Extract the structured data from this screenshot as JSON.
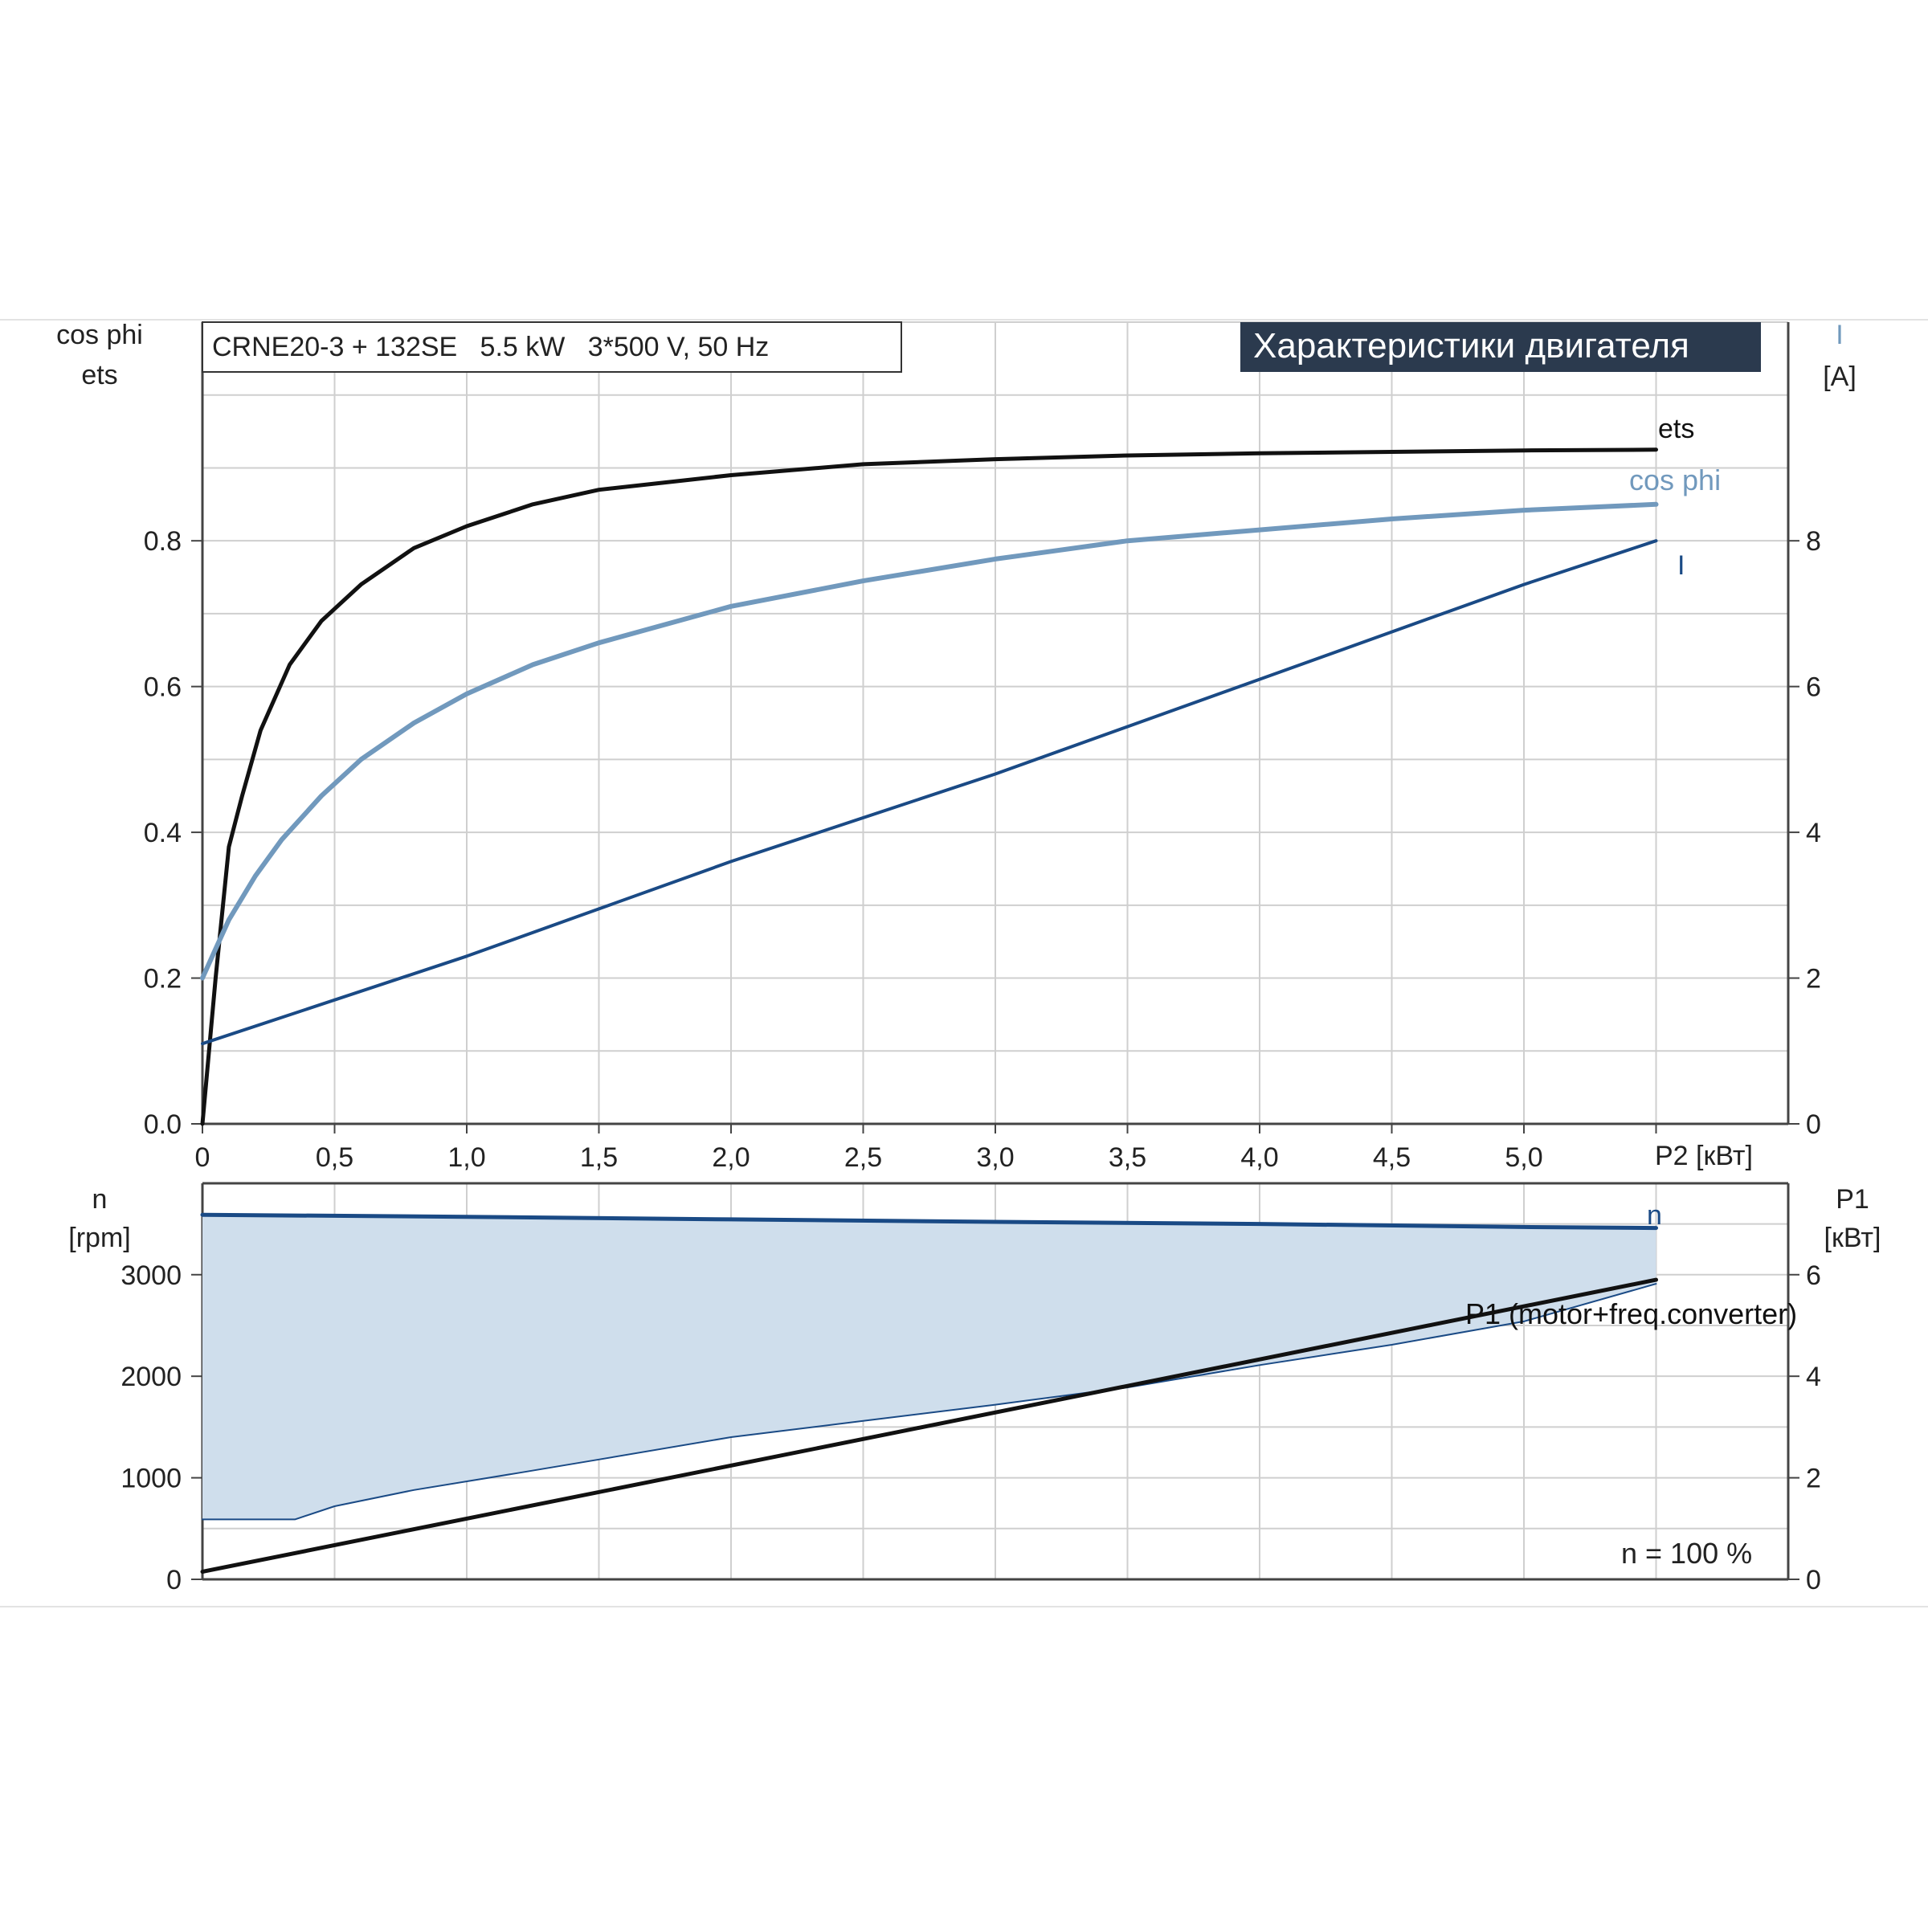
{
  "header": {
    "model": "CRNE20-3 + 132SE   5.5 kW   3*500 V, 50 Hz",
    "title": "Характеристики двигателя"
  },
  "colors": {
    "ets": "#111111",
    "cos_phi": "#7199bd",
    "current": "#1a4a85",
    "speed": "#1a4a85",
    "p1": "#111111",
    "band_fill": "#cfdeec",
    "grid": "#cfcfcf",
    "title_bg": "#2b3a4e"
  },
  "chart_data": [
    {
      "type": "line",
      "xlabel": "P2 [кВт]",
      "xlim": [
        0,
        6.0
      ],
      "xticks": [
        "0",
        "0,5",
        "1,0",
        "1,5",
        "2,0",
        "2,5",
        "3,0",
        "3,5",
        "4,0",
        "4,5",
        "5,0"
      ],
      "ylabel_left": [
        "cos phi",
        "ets"
      ],
      "ylim_left": [
        0,
        1.1
      ],
      "yticks_left": [
        "0.0",
        "0.2",
        "0.4",
        "0.6",
        "0.8"
      ],
      "ylabel_right": [
        "I",
        "[A]"
      ],
      "ylim_right": [
        0,
        11
      ],
      "yticks_right": [
        "0",
        "2",
        "4",
        "6",
        "8"
      ],
      "grid": true,
      "series": [
        {
          "name": "ets",
          "axis": "left",
          "x": [
            0,
            0.05,
            0.1,
            0.15,
            0.22,
            0.33,
            0.45,
            0.6,
            0.8,
            1.0,
            1.25,
            1.5,
            1.75,
            2.0,
            2.5,
            3.0,
            3.5,
            4.0,
            4.5,
            5.0,
            5.5
          ],
          "y": [
            0,
            0.2,
            0.38,
            0.45,
            0.54,
            0.63,
            0.69,
            0.74,
            0.79,
            0.82,
            0.85,
            0.87,
            0.88,
            0.89,
            0.905,
            0.912,
            0.917,
            0.92,
            0.922,
            0.924,
            0.925
          ]
        },
        {
          "name": "cos phi",
          "axis": "left",
          "x": [
            0,
            0.05,
            0.1,
            0.2,
            0.3,
            0.45,
            0.6,
            0.8,
            1.0,
            1.25,
            1.5,
            2.0,
            2.5,
            3.0,
            3.5,
            4.0,
            4.5,
            5.0,
            5.5
          ],
          "y": [
            0.2,
            0.24,
            0.28,
            0.34,
            0.39,
            0.45,
            0.5,
            0.55,
            0.59,
            0.63,
            0.66,
            0.71,
            0.745,
            0.775,
            0.8,
            0.815,
            0.83,
            0.842,
            0.85
          ]
        },
        {
          "name": "I",
          "axis": "right",
          "x": [
            0,
            1.0,
            2.0,
            3.0,
            4.0,
            5.0,
            5.5
          ],
          "y": [
            1.1,
            2.3,
            3.6,
            4.8,
            6.1,
            7.4,
            8.0
          ]
        }
      ]
    },
    {
      "type": "area",
      "ylabel_left": [
        "n",
        "[rpm]"
      ],
      "ylim_left": [
        0,
        3900
      ],
      "yticks_left": [
        "0",
        "1000",
        "2000",
        "3000"
      ],
      "ylabel_right": [
        "P1",
        "[кВт]"
      ],
      "ylim_right": [
        0,
        7.8
      ],
      "yticks_right": [
        "0",
        "2",
        "4",
        "6"
      ],
      "annotation": "n = 100 %",
      "grid": true,
      "series": [
        {
          "name": "n",
          "axis": "left",
          "x": [
            0,
            1.0,
            2.0,
            3.0,
            4.0,
            5.0,
            5.5
          ],
          "y": [
            3590,
            3570,
            3545,
            3520,
            3500,
            3470,
            3460
          ]
        },
        {
          "name": "n_min",
          "axis": "left",
          "x": [
            0,
            0.35,
            0.5,
            0.8,
            1.2,
            1.5,
            2.0,
            2.5,
            3.0,
            3.5,
            4.0,
            4.5,
            5.0,
            5.5
          ],
          "y": [
            590,
            590,
            720,
            880,
            1050,
            1180,
            1400,
            1560,
            1720,
            1890,
            2110,
            2310,
            2540,
            2910
          ]
        },
        {
          "name": "P1 (motor+freq.converter)",
          "axis": "right",
          "x": [
            0,
            5.5
          ],
          "y": [
            0.15,
            5.9
          ]
        }
      ]
    }
  ]
}
